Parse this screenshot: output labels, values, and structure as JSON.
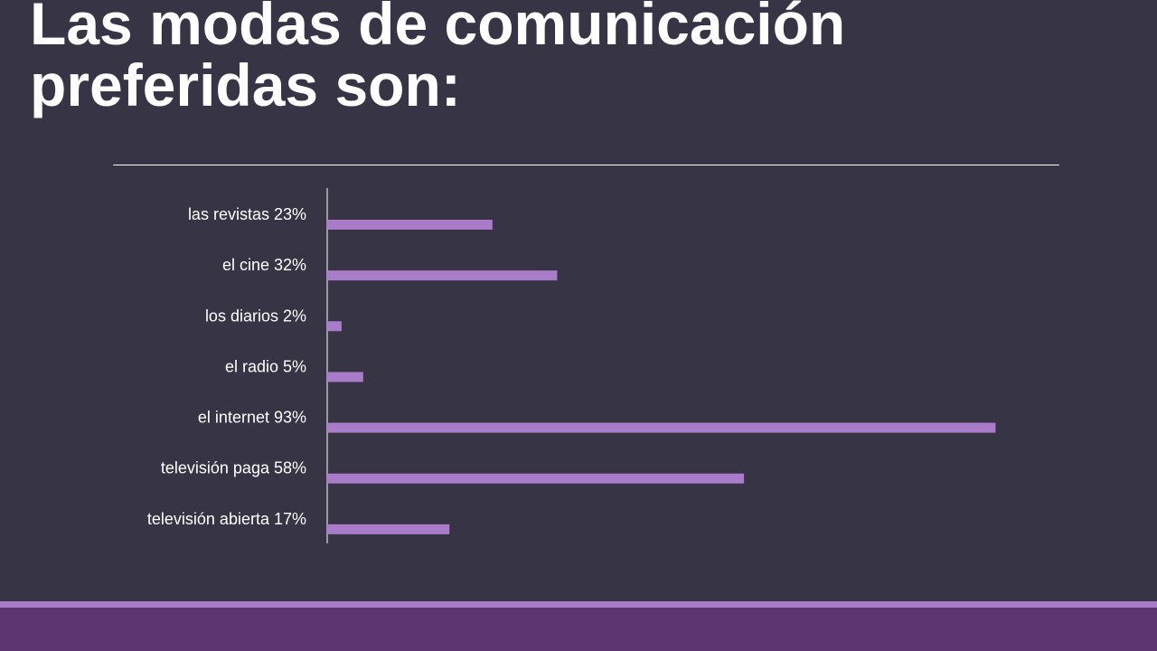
{
  "title": {
    "line1": "Las modas de comunicación",
    "line2": "preferidas son:"
  },
  "colors": {
    "background": "#373545",
    "bar": "#a87cc8",
    "footer_band": "#5c3470",
    "footer_accent": "#a87cc8",
    "text": "#ffffff"
  },
  "chart_data": {
    "type": "bar",
    "orientation": "horizontal",
    "categories": [
      "las revistas 23%",
      "el cine 32%",
      "los diarios 2%",
      "el radio 5%",
      "el internet 93%",
      "televisión paga 58%",
      "televisión abierta 17%"
    ],
    "values": [
      23,
      32,
      2,
      5,
      93,
      58,
      17
    ],
    "title": "",
    "xlabel": "",
    "ylabel": "",
    "xlim": [
      0,
      100
    ],
    "grid": false,
    "legend": "none"
  }
}
